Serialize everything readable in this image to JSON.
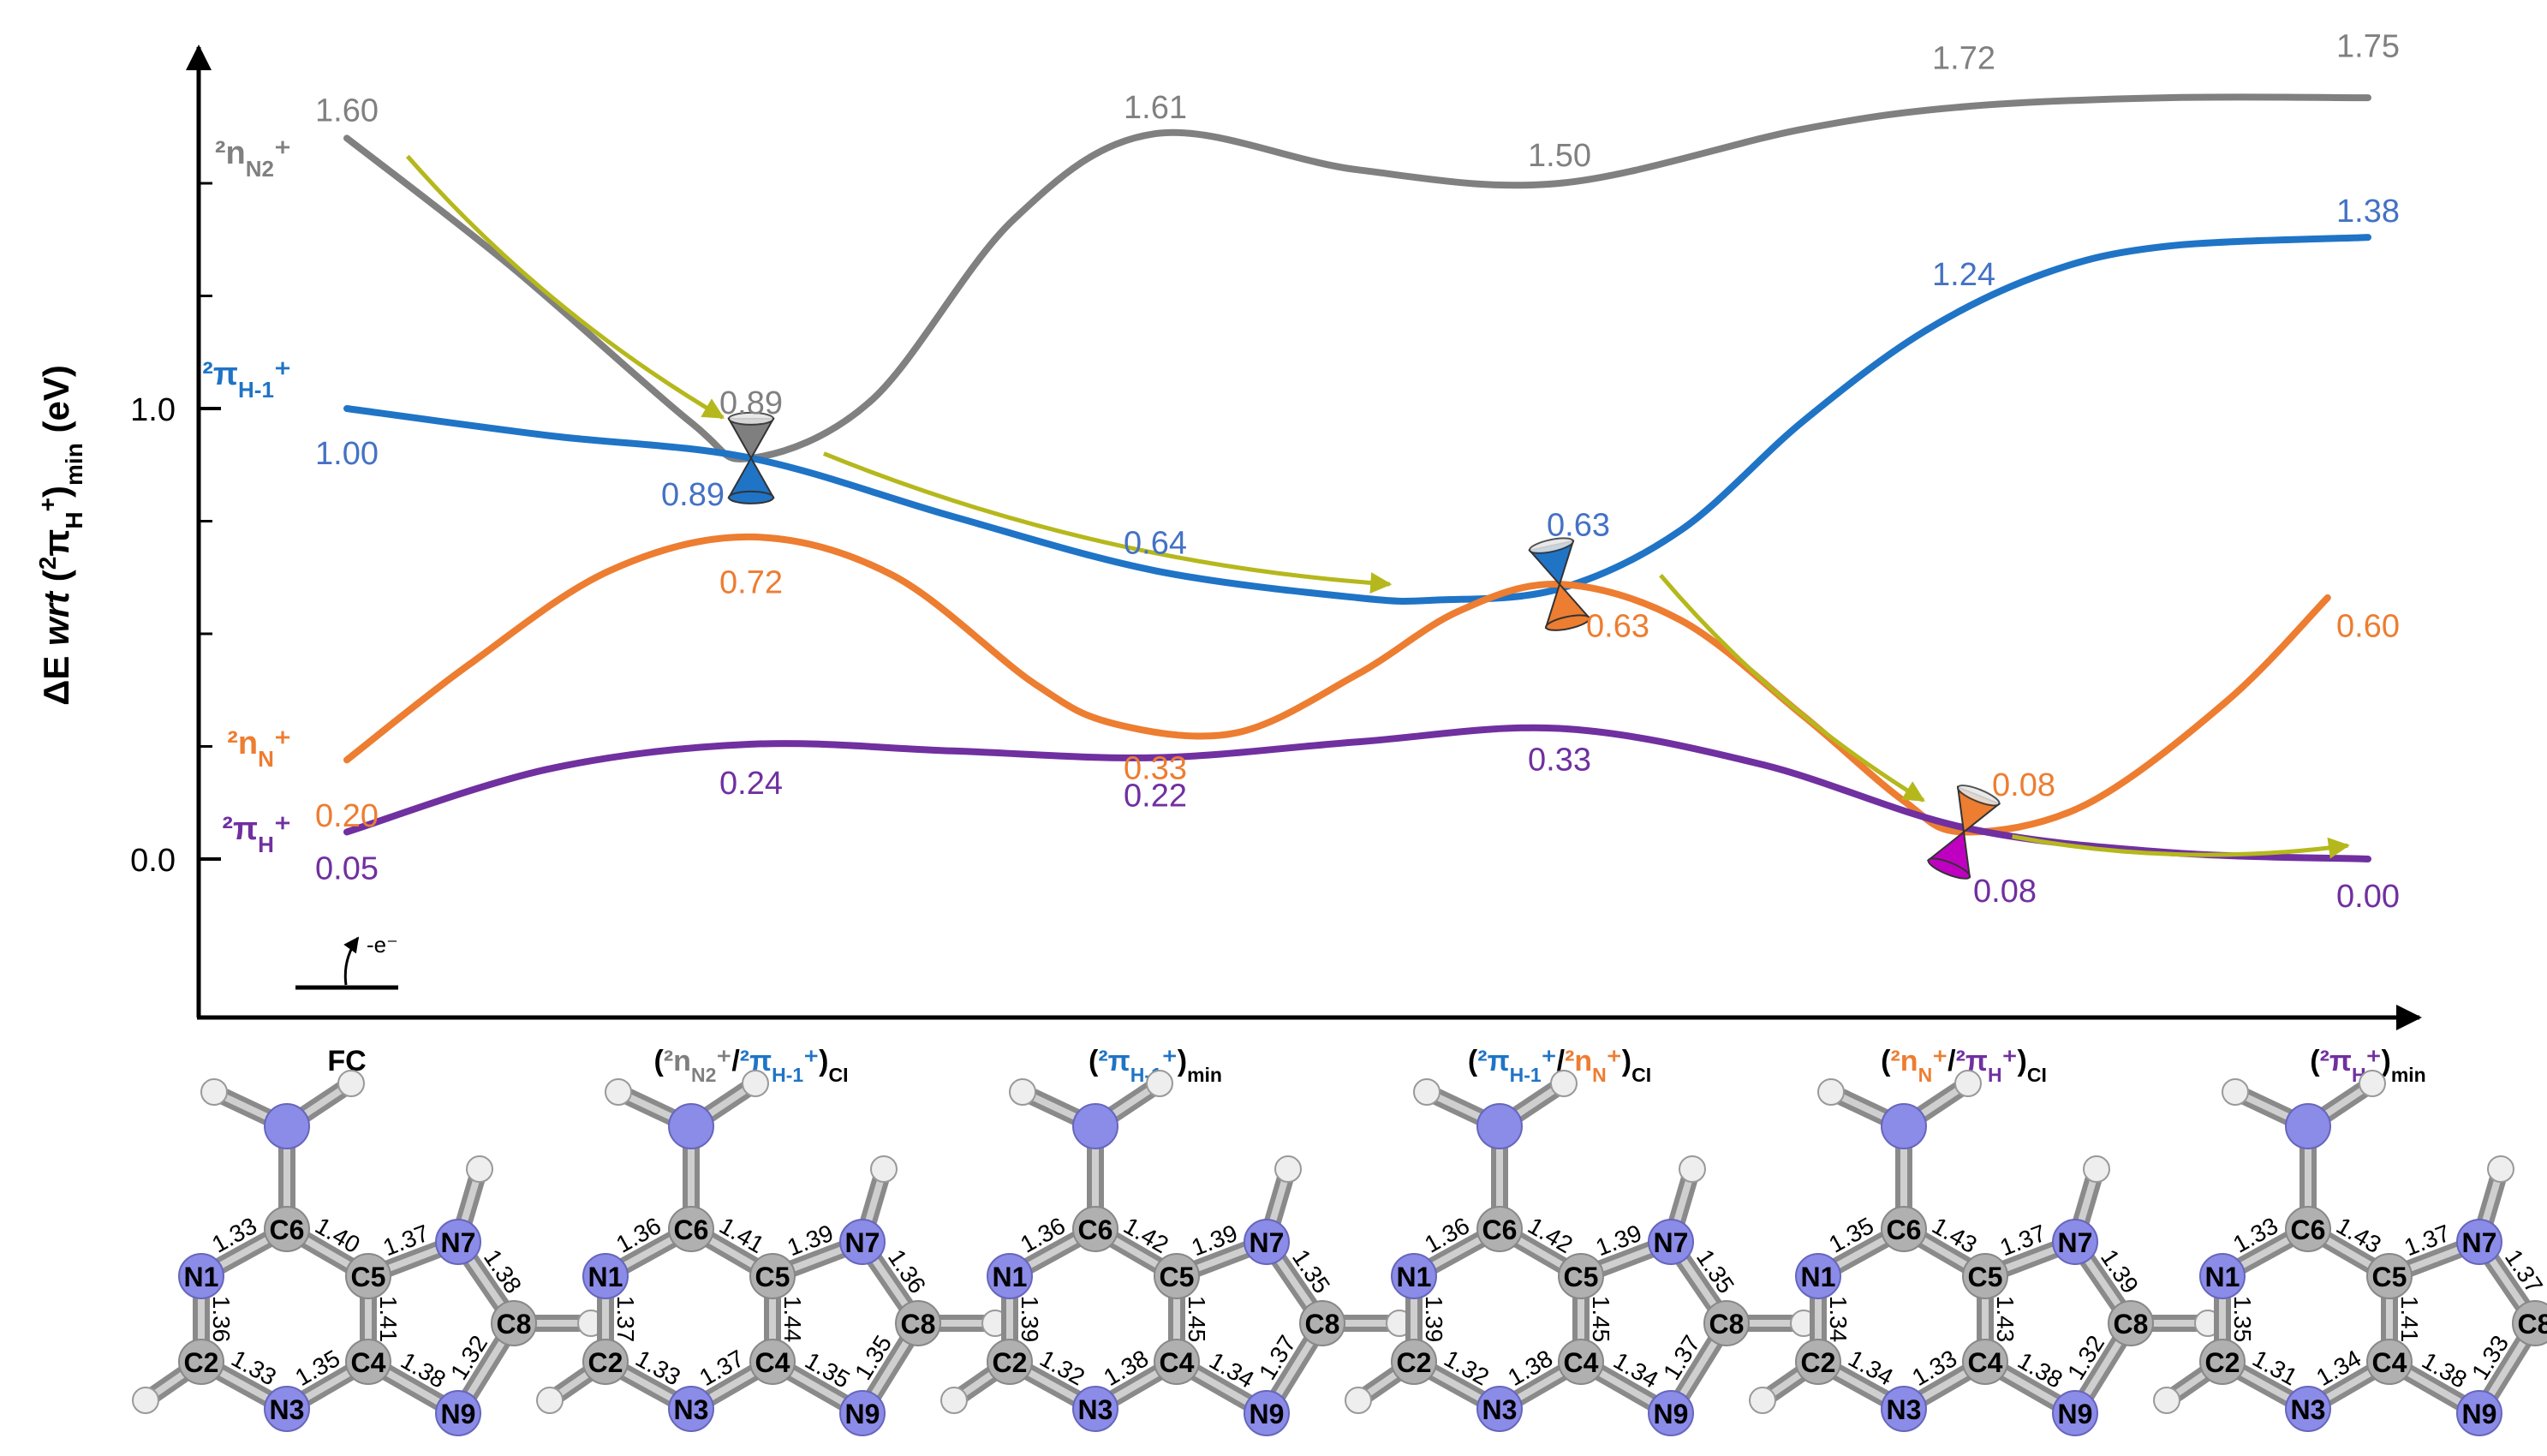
{
  "chart_data": {
    "type": "line",
    "ylabel_pre": "ΔE ",
    "ylabel_wrt": "wrt",
    "ylabel_sup": "2",
    "ylabel_pi": "π",
    "ylabel_sub": "H",
    "ylabel_plus": "+",
    "ylabel_min": "min",
    "ylabel_unit": "(eV)",
    "ylim": [
      -0.35,
      1.8
    ],
    "yticks": [
      {
        "value": 0.0,
        "label": "0.0"
      },
      {
        "value": 1.0,
        "label": "1.0"
      }
    ],
    "minor_yticks": [
      0.25,
      0.5,
      0.75,
      1.25,
      1.5
    ],
    "geometries": [
      {
        "label": [
          {
            "t": "FC",
            "c": "#000000"
          }
        ]
      },
      {
        "label": [
          {
            "t": "(",
            "c": "#000000"
          },
          {
            "t": "²n",
            "c": "#7f7f7f"
          },
          {
            "t": "N2",
            "c": "#7f7f7f",
            "sub": true
          },
          {
            "t": "⁺",
            "c": "#7f7f7f"
          },
          {
            "t": "/",
            "c": "#000000"
          },
          {
            "t": "²π",
            "c": "#1f74c6"
          },
          {
            "t": "H-1",
            "c": "#1f74c6",
            "sub": true
          },
          {
            "t": "⁺",
            "c": "#1f74c6"
          },
          {
            "t": ")",
            "c": "#000000"
          },
          {
            "t": "CI",
            "c": "#000000",
            "sub": true
          }
        ]
      },
      {
        "label": [
          {
            "t": "(",
            "c": "#000000"
          },
          {
            "t": "²π",
            "c": "#1f74c6"
          },
          {
            "t": "H-1",
            "c": "#1f74c6",
            "sub": true
          },
          {
            "t": "⁺",
            "c": "#1f74c6"
          },
          {
            "t": ")",
            "c": "#000000"
          },
          {
            "t": "min",
            "c": "#000000",
            "sub": true
          }
        ]
      },
      {
        "label": [
          {
            "t": "(",
            "c": "#000000"
          },
          {
            "t": "²π",
            "c": "#1f74c6"
          },
          {
            "t": "H-1",
            "c": "#1f74c6",
            "sub": true
          },
          {
            "t": "⁺",
            "c": "#1f74c6"
          },
          {
            "t": "/",
            "c": "#000000"
          },
          {
            "t": "²n",
            "c": "#ed7d31"
          },
          {
            "t": "N",
            "c": "#ed7d31",
            "sub": true
          },
          {
            "t": "⁺",
            "c": "#ed7d31"
          },
          {
            "t": ")",
            "c": "#000000"
          },
          {
            "t": "CI",
            "c": "#000000",
            "sub": true
          }
        ]
      },
      {
        "label": [
          {
            "t": "(",
            "c": "#000000"
          },
          {
            "t": "²n",
            "c": "#ed7d31"
          },
          {
            "t": "N",
            "c": "#ed7d31",
            "sub": true
          },
          {
            "t": "⁺",
            "c": "#ed7d31"
          },
          {
            "t": "/",
            "c": "#000000"
          },
          {
            "t": "²π",
            "c": "#7030a0"
          },
          {
            "t": "H",
            "c": "#7030a0",
            "sub": true
          },
          {
            "t": "⁺",
            "c": "#7030a0"
          },
          {
            "t": ")",
            "c": "#000000"
          },
          {
            "t": "CI",
            "c": "#000000",
            "sub": true
          }
        ]
      },
      {
        "label": [
          {
            "t": "(",
            "c": "#000000"
          },
          {
            "t": "²π",
            "c": "#7030a0"
          },
          {
            "t": "H",
            "c": "#7030a0",
            "sub": true
          },
          {
            "t": "⁺",
            "c": "#7030a0"
          },
          {
            "t": ")",
            "c": "#000000"
          },
          {
            "t": "min",
            "c": "#000000",
            "sub": true
          }
        ]
      }
    ],
    "series": [
      {
        "name": "gray",
        "legend": [
          {
            "t": "²n"
          },
          {
            "t": "N2",
            "sub": true
          },
          {
            "t": "⁺"
          }
        ],
        "color": "#808080",
        "legend_y": 1.57,
        "curve_x": [
          0,
          0.4,
          0.85,
          1,
          1.3,
          1.65,
          2,
          2.5,
          3,
          3.6,
          4,
          4.5,
          5
        ],
        "curve_y": [
          1.6,
          1.32,
          0.97,
          0.89,
          1.02,
          1.42,
          1.61,
          1.53,
          1.5,
          1.62,
          1.67,
          1.69,
          1.69
        ],
        "points": [
          {
            "x": 0,
            "y": 1.6,
            "label": "1.60"
          },
          {
            "x": 1,
            "y": 0.89,
            "label": "0.89"
          },
          {
            "x": 2,
            "y": 1.61,
            "label": "1.61"
          },
          {
            "x": 3,
            "y": 1.5,
            "label": "1.50"
          },
          {
            "x": 4,
            "y": 1.72,
            "label": "1.72"
          },
          {
            "x": 5,
            "y": 1.75,
            "label": "1.75"
          }
        ]
      },
      {
        "name": "blue",
        "legend": [
          {
            "t": "²π"
          },
          {
            "t": "H-1",
            "sub": true
          },
          {
            "t": "⁺"
          }
        ],
        "color": "#1f74c6",
        "legend_y": 1.08,
        "curve_x": [
          0,
          0.5,
          1,
          1.5,
          2,
          2.5,
          2.7,
          3,
          3.3,
          3.6,
          3.9,
          4.2,
          4.5,
          5
        ],
        "curve_y": [
          1.0,
          0.94,
          0.89,
          0.76,
          0.64,
          0.58,
          0.575,
          0.6,
          0.73,
          0.97,
          1.17,
          1.3,
          1.36,
          1.38
        ],
        "points": [
          {
            "x": 0,
            "y": 1.0,
            "label": "1.00"
          },
          {
            "x": 1,
            "y": 0.89,
            "label": "0.89"
          },
          {
            "x": 2,
            "y": 0.64,
            "label": "0.64"
          },
          {
            "x": 3,
            "y": 0.63,
            "label": "0.63"
          },
          {
            "x": 4,
            "y": 1.24,
            "label": "1.24"
          },
          {
            "x": 5,
            "y": 1.38,
            "label": "1.38"
          }
        ]
      },
      {
        "name": "orange",
        "legend": [
          {
            "t": "²n"
          },
          {
            "t": "N",
            "sub": true
          },
          {
            "t": "⁺"
          }
        ],
        "color": "#ed7d31",
        "legend_y": 0.26,
        "curve_x": [
          0,
          0.3,
          0.65,
          1,
          1.35,
          1.7,
          1.9,
          2.2,
          2.5,
          2.75,
          3,
          3.3,
          3.6,
          3.85,
          4,
          4.3,
          4.65,
          4.9
        ],
        "curve_y": [
          0.22,
          0.43,
          0.64,
          0.715,
          0.63,
          0.39,
          0.3,
          0.28,
          0.41,
          0.55,
          0.61,
          0.53,
          0.32,
          0.13,
          0.06,
          0.12,
          0.35,
          0.58
        ],
        "points": [
          {
            "x": 0,
            "y": 0.2,
            "label": "0.20"
          },
          {
            "x": 1,
            "y": 0.72,
            "label": "0.72"
          },
          {
            "x": 2,
            "y": 0.33,
            "label": "0.33"
          },
          {
            "x": 3,
            "y": 0.63,
            "label": "0.63"
          },
          {
            "x": 4,
            "y": 0.08,
            "label": "0.08"
          },
          {
            "x": 5,
            "y": 0.6,
            "label": "0.60"
          }
        ]
      },
      {
        "name": "purple",
        "legend": [
          {
            "t": "²π"
          },
          {
            "t": "H",
            "sub": true
          },
          {
            "t": "⁺"
          }
        ],
        "color": "#7030a0",
        "legend_y": 0.07,
        "curve_x": [
          0,
          0.5,
          1,
          1.5,
          2,
          2.5,
          3,
          3.5,
          4,
          4.5,
          5
        ],
        "curve_y": [
          0.06,
          0.2,
          0.255,
          0.24,
          0.225,
          0.26,
          0.29,
          0.21,
          0.07,
          0.015,
          0.0
        ],
        "points": [
          {
            "x": 0,
            "y": 0.05,
            "label": "0.05"
          },
          {
            "x": 1,
            "y": 0.24,
            "label": "0.24"
          },
          {
            "x": 2,
            "y": 0.22,
            "label": "0.22"
          },
          {
            "x": 3,
            "y": 0.33,
            "label": "0.33"
          },
          {
            "x": 4,
            "y": 0.08,
            "label": "0.08"
          },
          {
            "x": 5,
            "y": 0.0,
            "label": "0.00"
          }
        ]
      }
    ],
    "conical_intersections": [
      {
        "x": 1,
        "y": 0.89,
        "top": "#7f7f7f",
        "bottom": "#1f74c6"
      },
      {
        "x": 3,
        "y": 0.61,
        "top": "#1f74c6",
        "bottom": "#ed7d31"
      },
      {
        "x": 4,
        "y": 0.06,
        "top": "#ed7d31",
        "bottom": "#c000c0"
      }
    ],
    "pathway_arrows": [
      {
        "from": [
          0.15,
          1.56
        ],
        "to": [
          0.93,
          0.98
        ]
      },
      {
        "from": [
          1.18,
          0.9
        ],
        "to": [
          2.58,
          0.61
        ]
      },
      {
        "from": [
          3.25,
          0.63
        ],
        "to": [
          3.9,
          0.13
        ]
      },
      {
        "from": [
          4.12,
          0.05
        ],
        "to": [
          4.95,
          0.03
        ]
      }
    ],
    "ionization_label": "-e⁻",
    "molecules": [
      {
        "bonds": [
          "1.33",
          "1.40",
          "1.36",
          "1.41",
          "1.37",
          "1.38",
          "1.33",
          "1.38",
          "1.32",
          "1.35"
        ]
      },
      {
        "bonds": [
          "1.36",
          "1.41",
          "1.37",
          "1.44",
          "1.39",
          "1.36",
          "1.33",
          "1.35",
          "1.35",
          "1.37"
        ]
      },
      {
        "bonds": [
          "1.36",
          "1.42",
          "1.39",
          "1.45",
          "1.39",
          "1.35",
          "1.32",
          "1.34",
          "1.37",
          "1.38"
        ]
      },
      {
        "bonds": [
          "1.36",
          "1.42",
          "1.39",
          "1.45",
          "1.39",
          "1.35",
          "1.32",
          "1.34",
          "1.37",
          "1.38"
        ]
      },
      {
        "bonds": [
          "1.35",
          "1.43",
          "1.34",
          "1.43",
          "1.37",
          "1.39",
          "1.34",
          "1.38",
          "1.32",
          "1.33"
        ]
      },
      {
        "bonds": [
          "1.33",
          "1.43",
          "1.35",
          "1.41",
          "1.37",
          "1.37",
          "1.31",
          "1.38",
          "1.33",
          "1.34"
        ]
      }
    ],
    "atoms": {
      "c6": "C6",
      "n1": "N1",
      "c5": "C5",
      "n7": "N7",
      "c8": "C8",
      "c2": "C2",
      "c4": "C4",
      "n3": "N3",
      "n9": "N9"
    }
  }
}
